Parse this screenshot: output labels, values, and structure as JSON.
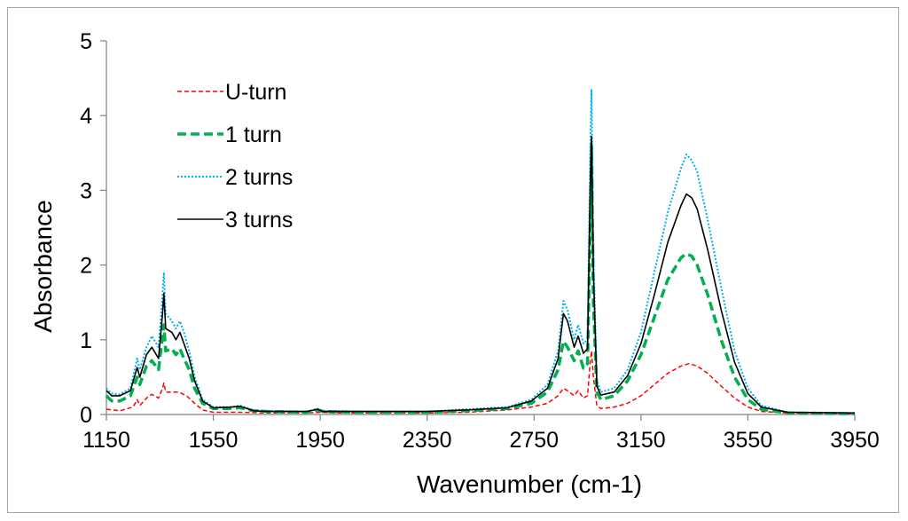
{
  "chart_data": {
    "type": "line",
    "title": "",
    "xlabel": "Wavenumber (cm-1)",
    "ylabel": "Absorbance",
    "xlim": [
      1150,
      3950
    ],
    "ylim": [
      0,
      5
    ],
    "x_ticks": [
      1150,
      1550,
      1950,
      2350,
      2750,
      3150,
      3550,
      3950
    ],
    "y_ticks": [
      0,
      1,
      2,
      3,
      4,
      5
    ],
    "grid": false,
    "legend_position": "top-left",
    "series": [
      {
        "name": "U-turn",
        "color": "#ff0000",
        "style": "dashed",
        "points": [
          [
            1150,
            0.07
          ],
          [
            1200,
            0.05
          ],
          [
            1250,
            0.1
          ],
          [
            1265,
            0.2
          ],
          [
            1275,
            0.12
          ],
          [
            1300,
            0.22
          ],
          [
            1320,
            0.27
          ],
          [
            1345,
            0.22
          ],
          [
            1360,
            0.35
          ],
          [
            1365,
            0.42
          ],
          [
            1372,
            0.3
          ],
          [
            1395,
            0.3
          ],
          [
            1420,
            0.3
          ],
          [
            1450,
            0.25
          ],
          [
            1480,
            0.15
          ],
          [
            1510,
            0.06
          ],
          [
            1550,
            0.03
          ],
          [
            1620,
            0.03
          ],
          [
            1650,
            0.03
          ],
          [
            1750,
            0.02
          ],
          [
            1900,
            0.02
          ],
          [
            1950,
            0.03
          ],
          [
            2000,
            0.02
          ],
          [
            2350,
            0.02
          ],
          [
            2500,
            0.03
          ],
          [
            2650,
            0.06
          ],
          [
            2740,
            0.1
          ],
          [
            2800,
            0.15
          ],
          [
            2840,
            0.25
          ],
          [
            2860,
            0.35
          ],
          [
            2875,
            0.32
          ],
          [
            2900,
            0.25
          ],
          [
            2915,
            0.32
          ],
          [
            2935,
            0.22
          ],
          [
            2950,
            0.25
          ],
          [
            2960,
            0.7
          ],
          [
            2965,
            0.85
          ],
          [
            2972,
            0.5
          ],
          [
            2985,
            0.12
          ],
          [
            3000,
            0.08
          ],
          [
            3050,
            0.1
          ],
          [
            3100,
            0.15
          ],
          [
            3150,
            0.25
          ],
          [
            3200,
            0.4
          ],
          [
            3250,
            0.55
          ],
          [
            3300,
            0.65
          ],
          [
            3330,
            0.68
          ],
          [
            3360,
            0.65
          ],
          [
            3400,
            0.55
          ],
          [
            3450,
            0.38
          ],
          [
            3500,
            0.22
          ],
          [
            3550,
            0.1
          ],
          [
            3600,
            0.04
          ],
          [
            3700,
            0.02
          ],
          [
            3950,
            0.01
          ]
        ]
      },
      {
        "name": "1 turn",
        "color": "#00b050",
        "style": "bold-dashed",
        "points": [
          [
            1150,
            0.25
          ],
          [
            1170,
            0.18
          ],
          [
            1200,
            0.18
          ],
          [
            1240,
            0.25
          ],
          [
            1265,
            0.5
          ],
          [
            1275,
            0.4
          ],
          [
            1300,
            0.65
          ],
          [
            1320,
            0.72
          ],
          [
            1345,
            0.6
          ],
          [
            1360,
            1.05
          ],
          [
            1365,
            1.2
          ],
          [
            1372,
            0.85
          ],
          [
            1395,
            0.88
          ],
          [
            1410,
            0.8
          ],
          [
            1425,
            0.88
          ],
          [
            1440,
            0.75
          ],
          [
            1460,
            0.6
          ],
          [
            1480,
            0.35
          ],
          [
            1510,
            0.15
          ],
          [
            1550,
            0.08
          ],
          [
            1620,
            0.08
          ],
          [
            1650,
            0.09
          ],
          [
            1700,
            0.05
          ],
          [
            1750,
            0.04
          ],
          [
            1900,
            0.03
          ],
          [
            1940,
            0.06
          ],
          [
            1960,
            0.04
          ],
          [
            2100,
            0.03
          ],
          [
            2350,
            0.03
          ],
          [
            2500,
            0.05
          ],
          [
            2650,
            0.08
          ],
          [
            2740,
            0.15
          ],
          [
            2800,
            0.3
          ],
          [
            2840,
            0.6
          ],
          [
            2860,
            0.98
          ],
          [
            2875,
            0.9
          ],
          [
            2900,
            0.72
          ],
          [
            2915,
            0.85
          ],
          [
            2935,
            0.62
          ],
          [
            2950,
            0.68
          ],
          [
            2960,
            2.5
          ],
          [
            2965,
            3.6
          ],
          [
            2972,
            1.5
          ],
          [
            2985,
            0.3
          ],
          [
            3000,
            0.2
          ],
          [
            3050,
            0.25
          ],
          [
            3100,
            0.45
          ],
          [
            3150,
            0.8
          ],
          [
            3200,
            1.3
          ],
          [
            3250,
            1.8
          ],
          [
            3300,
            2.1
          ],
          [
            3320,
            2.15
          ],
          [
            3340,
            2.12
          ],
          [
            3360,
            2.0
          ],
          [
            3400,
            1.6
          ],
          [
            3450,
            1.0
          ],
          [
            3500,
            0.5
          ],
          [
            3550,
            0.2
          ],
          [
            3600,
            0.07
          ],
          [
            3700,
            0.02
          ],
          [
            3950,
            0.01
          ]
        ]
      },
      {
        "name": "2 turns",
        "color": "#00b0f0",
        "style": "dotted",
        "points": [
          [
            1150,
            0.35
          ],
          [
            1170,
            0.28
          ],
          [
            1200,
            0.27
          ],
          [
            1240,
            0.35
          ],
          [
            1265,
            0.75
          ],
          [
            1275,
            0.6
          ],
          [
            1300,
            0.9
          ],
          [
            1320,
            1.05
          ],
          [
            1345,
            0.9
          ],
          [
            1360,
            1.6
          ],
          [
            1365,
            1.9
          ],
          [
            1372,
            1.35
          ],
          [
            1395,
            1.25
          ],
          [
            1410,
            1.15
          ],
          [
            1425,
            1.25
          ],
          [
            1440,
            1.1
          ],
          [
            1460,
            0.85
          ],
          [
            1480,
            0.5
          ],
          [
            1510,
            0.2
          ],
          [
            1550,
            0.1
          ],
          [
            1620,
            0.1
          ],
          [
            1650,
            0.12
          ],
          [
            1700,
            0.06
          ],
          [
            1750,
            0.05
          ],
          [
            1900,
            0.04
          ],
          [
            1940,
            0.08
          ],
          [
            1960,
            0.05
          ],
          [
            2100,
            0.04
          ],
          [
            2350,
            0.04
          ],
          [
            2500,
            0.07
          ],
          [
            2650,
            0.1
          ],
          [
            2740,
            0.2
          ],
          [
            2800,
            0.4
          ],
          [
            2840,
            0.85
          ],
          [
            2860,
            1.52
          ],
          [
            2875,
            1.4
          ],
          [
            2900,
            1.0
          ],
          [
            2915,
            1.2
          ],
          [
            2935,
            0.95
          ],
          [
            2950,
            1.0
          ],
          [
            2960,
            3.5
          ],
          [
            2965,
            4.35
          ],
          [
            2972,
            2.2
          ],
          [
            2985,
            0.45
          ],
          [
            3000,
            0.3
          ],
          [
            3050,
            0.35
          ],
          [
            3100,
            0.6
          ],
          [
            3150,
            1.1
          ],
          [
            3200,
            1.9
          ],
          [
            3250,
            2.7
          ],
          [
            3300,
            3.3
          ],
          [
            3320,
            3.48
          ],
          [
            3340,
            3.4
          ],
          [
            3360,
            3.25
          ],
          [
            3400,
            2.6
          ],
          [
            3450,
            1.7
          ],
          [
            3500,
            0.85
          ],
          [
            3550,
            0.35
          ],
          [
            3600,
            0.12
          ],
          [
            3700,
            0.03
          ],
          [
            3950,
            0.02
          ]
        ]
      },
      {
        "name": "3 turns",
        "color": "#000000",
        "style": "solid",
        "points": [
          [
            1150,
            0.32
          ],
          [
            1170,
            0.25
          ],
          [
            1200,
            0.25
          ],
          [
            1240,
            0.32
          ],
          [
            1265,
            0.63
          ],
          [
            1275,
            0.5
          ],
          [
            1300,
            0.8
          ],
          [
            1320,
            0.9
          ],
          [
            1345,
            0.75
          ],
          [
            1360,
            1.35
          ],
          [
            1365,
            1.62
          ],
          [
            1372,
            1.15
          ],
          [
            1395,
            1.1
          ],
          [
            1410,
            1.0
          ],
          [
            1425,
            1.1
          ],
          [
            1440,
            0.95
          ],
          [
            1460,
            0.75
          ],
          [
            1480,
            0.45
          ],
          [
            1510,
            0.18
          ],
          [
            1550,
            0.09
          ],
          [
            1620,
            0.1
          ],
          [
            1650,
            0.11
          ],
          [
            1700,
            0.05
          ],
          [
            1750,
            0.04
          ],
          [
            1900,
            0.04
          ],
          [
            1940,
            0.07
          ],
          [
            1960,
            0.04
          ],
          [
            2100,
            0.04
          ],
          [
            2350,
            0.04
          ],
          [
            2500,
            0.06
          ],
          [
            2650,
            0.09
          ],
          [
            2740,
            0.18
          ],
          [
            2800,
            0.35
          ],
          [
            2840,
            0.75
          ],
          [
            2860,
            1.35
          ],
          [
            2875,
            1.25
          ],
          [
            2900,
            0.9
          ],
          [
            2915,
            1.05
          ],
          [
            2935,
            0.82
          ],
          [
            2950,
            0.88
          ],
          [
            2960,
            3.0
          ],
          [
            2965,
            3.72
          ],
          [
            2972,
            1.9
          ],
          [
            2985,
            0.38
          ],
          [
            3000,
            0.26
          ],
          [
            3050,
            0.3
          ],
          [
            3100,
            0.52
          ],
          [
            3150,
            0.95
          ],
          [
            3200,
            1.6
          ],
          [
            3250,
            2.3
          ],
          [
            3300,
            2.8
          ],
          [
            3320,
            2.95
          ],
          [
            3340,
            2.9
          ],
          [
            3360,
            2.75
          ],
          [
            3400,
            2.2
          ],
          [
            3450,
            1.4
          ],
          [
            3500,
            0.7
          ],
          [
            3550,
            0.28
          ],
          [
            3600,
            0.1
          ],
          [
            3700,
            0.03
          ],
          [
            3950,
            0.02
          ]
        ]
      }
    ]
  }
}
